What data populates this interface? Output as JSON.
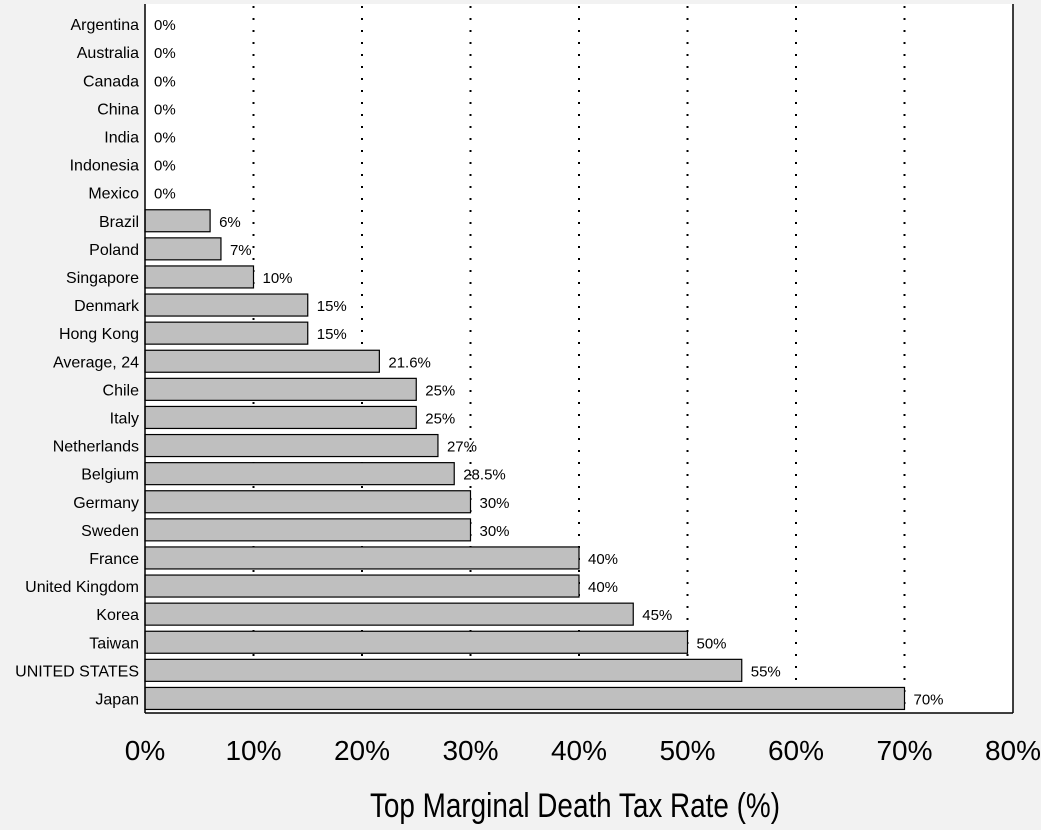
{
  "chart_data": {
    "type": "bar",
    "orientation": "horizontal",
    "title": "",
    "xlabel": "Top Marginal Death Tax Rate (%)",
    "ylabel": "",
    "xlim": [
      0,
      80
    ],
    "x_tick_values": [
      0,
      10,
      20,
      30,
      40,
      50,
      60,
      70,
      80
    ],
    "x_tick_labels": [
      "0%",
      "10%",
      "20%",
      "30%",
      "40%",
      "50%",
      "60%",
      "70%",
      "80%"
    ],
    "grid": "vertical dotted",
    "legend": "none",
    "colors": {
      "bar_fill": "#bfbfbf",
      "bar_stroke": "#000000",
      "background": "#f2f2f2",
      "plot_bg": "#ffffff"
    },
    "categories": [
      "Argentina",
      "Australia",
      "Canada",
      "China",
      "India",
      "Indonesia",
      "Mexico",
      "Brazil",
      "Poland",
      "Singapore",
      "Denmark",
      "Hong Kong",
      "Average, 24",
      "Chile",
      "Italy",
      "Netherlands",
      "Belgium",
      "Germany",
      "Sweden",
      "France",
      "United Kingdom",
      "Korea",
      "Taiwan",
      "UNITED STATES",
      "Japan"
    ],
    "values": [
      0,
      0,
      0,
      0,
      0,
      0,
      0,
      6,
      7,
      10,
      15,
      15,
      21.6,
      25,
      25,
      27,
      28.5,
      30,
      30,
      40,
      40,
      45,
      50,
      55,
      70
    ],
    "data_labels": [
      "0%",
      "0%",
      "0%",
      "0%",
      "0%",
      "0%",
      "0%",
      "6%",
      "7%",
      "10%",
      "15%",
      "15%",
      "21.6%",
      "25%",
      "25%",
      "27%",
      "28.5%",
      "30%",
      "30%",
      "40%",
      "40%",
      "45%",
      "50%",
      "55%",
      "70%"
    ]
  }
}
